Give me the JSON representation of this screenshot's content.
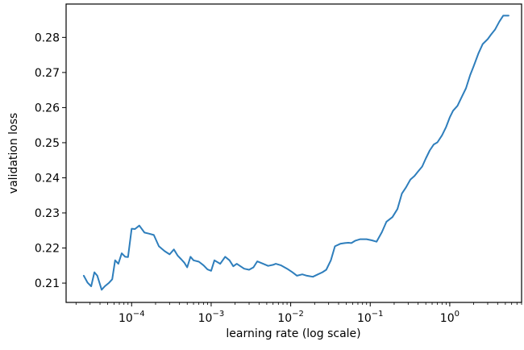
{
  "chart_data": {
    "type": "line",
    "title": "",
    "xlabel": "learning rate (log scale)",
    "ylabel": "validation loss",
    "xscale": "log",
    "xlim": [
      1.5e-05,
      8.0
    ],
    "ylim": [
      0.2045,
      0.2895
    ],
    "grid": false,
    "line_color": "#2e7ebc",
    "x_ticks": [
      {
        "value": 0.0001,
        "base": "10",
        "exp": "−4"
      },
      {
        "value": 0.001,
        "base": "10",
        "exp": "−3"
      },
      {
        "value": 0.01,
        "base": "10",
        "exp": "−2"
      },
      {
        "value": 0.1,
        "base": "10",
        "exp": "−1"
      },
      {
        "value": 1,
        "base": "10",
        "exp": "0"
      }
    ],
    "y_ticks": [
      {
        "value": 0.21,
        "label": "0.21"
      },
      {
        "value": 0.22,
        "label": "0.22"
      },
      {
        "value": 0.23,
        "label": "0.23"
      },
      {
        "value": 0.24,
        "label": "0.24"
      },
      {
        "value": 0.25,
        "label": "0.25"
      },
      {
        "value": 0.26,
        "label": "0.26"
      },
      {
        "value": 0.27,
        "label": "0.27"
      },
      {
        "value": 0.28,
        "label": "0.28"
      }
    ],
    "series": [
      {
        "x": [
          2.5e-05,
          2.8e-05,
          3.1e-05,
          3.4e-05,
          3.7e-05,
          4.2e-05,
          4.6e-05,
          5.2e-05,
          5.7e-05,
          6.2e-05,
          6.8e-05,
          7.5e-05,
          8.3e-05,
          9e-05,
          0.0001,
          0.00011,
          0.000125,
          0.000145,
          0.000165,
          0.00019,
          0.00022,
          0.00026,
          0.0003,
          0.00034,
          0.00038,
          0.00042,
          0.00046,
          0.0005,
          0.00055,
          0.0006,
          0.0007,
          0.0008,
          0.0009,
          0.001,
          0.0011,
          0.0013,
          0.0015,
          0.0017,
          0.0019,
          0.0021,
          0.0023,
          0.0026,
          0.003,
          0.0034,
          0.0038,
          0.0045,
          0.0052,
          0.006,
          0.0065,
          0.0075,
          0.009,
          0.0105,
          0.012,
          0.014,
          0.016,
          0.019,
          0.022,
          0.025,
          0.028,
          0.032,
          0.036,
          0.042,
          0.048,
          0.053,
          0.058,
          0.065,
          0.075,
          0.09,
          0.105,
          0.12,
          0.14,
          0.16,
          0.19,
          0.22,
          0.25,
          0.28,
          0.32,
          0.36,
          0.4,
          0.45,
          0.5,
          0.56,
          0.63,
          0.7,
          0.8,
          0.9,
          1.0,
          1.1,
          1.25,
          1.4,
          1.6,
          1.8,
          2.0,
          2.3,
          2.6,
          3.0,
          3.3,
          3.7,
          4.2,
          4.7,
          5.5
        ],
        "y": [
          0.2121,
          0.2101,
          0.2091,
          0.2131,
          0.2121,
          0.2081,
          0.2091,
          0.2101,
          0.2111,
          0.2165,
          0.2155,
          0.2185,
          0.2175,
          0.2174,
          0.2255,
          0.2254,
          0.2264,
          0.2244,
          0.2241,
          0.2237,
          0.2205,
          0.2191,
          0.2182,
          0.2196,
          0.2178,
          0.2168,
          0.2158,
          0.2145,
          0.2175,
          0.2165,
          0.2161,
          0.2151,
          0.2139,
          0.2135,
          0.2165,
          0.2155,
          0.2175,
          0.2165,
          0.2148,
          0.2155,
          0.2149,
          0.2141,
          0.2138,
          0.2145,
          0.2162,
          0.2155,
          0.2149,
          0.2152,
          0.2155,
          0.2151,
          0.2141,
          0.2131,
          0.2121,
          0.2125,
          0.2121,
          0.2118,
          0.2125,
          0.2131,
          0.2138,
          0.2165,
          0.2205,
          0.2212,
          0.2214,
          0.2215,
          0.2214,
          0.2221,
          0.2225,
          0.2225,
          0.2222,
          0.2218,
          0.2245,
          0.2275,
          0.2288,
          0.2311,
          0.2355,
          0.2372,
          0.2395,
          0.2405,
          0.2418,
          0.2432,
          0.2455,
          0.2478,
          0.2495,
          0.2501,
          0.2521,
          0.2545,
          0.2572,
          0.2591,
          0.2605,
          0.2628,
          0.2655,
          0.2692,
          0.2718,
          0.2755,
          0.2781,
          0.2795,
          0.2808,
          0.2822,
          0.2845,
          0.2862,
          0.2862
        ]
      }
    ]
  }
}
